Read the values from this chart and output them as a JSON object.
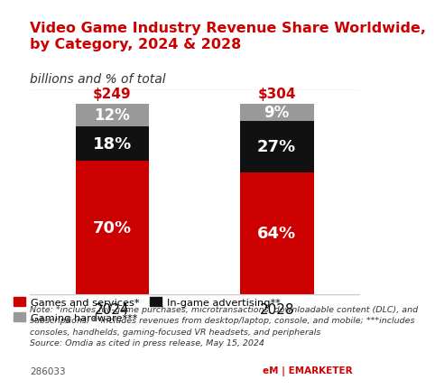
{
  "title": "Video Game Industry Revenue Share Worldwide,\nby Category, 2024 & 2028",
  "subtitle": "billions and % of total",
  "years": [
    "2024",
    "2028"
  ],
  "totals": [
    "$249",
    "$304"
  ],
  "segments": {
    "games": [
      70,
      64
    ],
    "advertising": [
      18,
      27
    ],
    "hardware": [
      12,
      9
    ]
  },
  "colors": {
    "games": "#cc0000",
    "advertising": "#111111",
    "hardware": "#999999"
  },
  "legend": [
    {
      "label": "Games and services*",
      "color": "#cc0000"
    },
    {
      "label": "Gaming hardware***",
      "color": "#999999"
    },
    {
      "label": "In-game advertising**",
      "color": "#111111"
    }
  ],
  "note": "Note: *includes full-game purchases, microtransactions, downloadable content (DLC), and\nsubscriptions; **includes revenues from desktop/laptop, console, and mobile; ***includes\nconsoles, handhelds, gaming-focused VR headsets, and peripherals\nSource: Omdia as cited in press release, May 15, 2024",
  "source_id": "286033",
  "total_color": "#cc0000",
  "title_color": "#cc0000",
  "bg_color": "#ffffff",
  "bar_width": 0.45,
  "ylim": [
    0,
    100
  ]
}
